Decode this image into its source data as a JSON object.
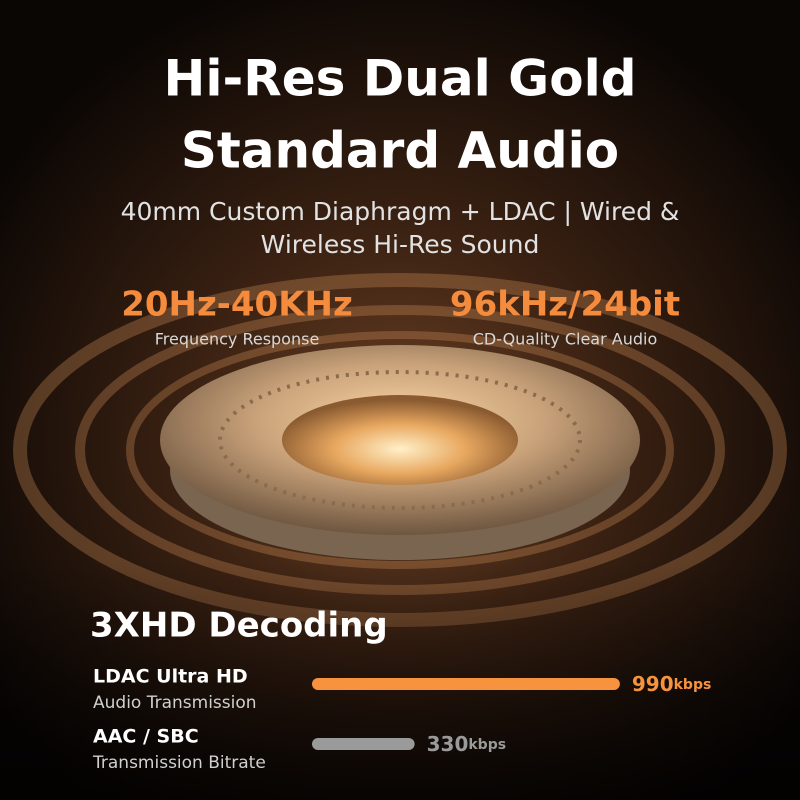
{
  "header": {
    "title_lines": [
      "Hi-Res Dual Gold",
      "Standard Audio"
    ],
    "subtitle_lines": [
      "40mm Custom Diaphragm + LDAC | Wired &",
      "Wireless Hi-Res Sound"
    ]
  },
  "stats": [
    {
      "value": "20Hz-40KHz",
      "label": "Frequency Response"
    },
    {
      "value": "96kHz/24bit",
      "label": "CD-Quality Clear Audio"
    }
  ],
  "decoding": {
    "title": "3XHD Decoding",
    "rows": [
      {
        "name": "LDAC Ultra HD",
        "sublabel": "Audio Transmission",
        "value": 990,
        "unit": "kbps",
        "color": "#f7933f"
      },
      {
        "name": "AAC / SBC",
        "sublabel": "Transmission Bitrate",
        "value": 330,
        "unit": "kbps",
        "color": "#9a9a9a"
      }
    ]
  }
}
